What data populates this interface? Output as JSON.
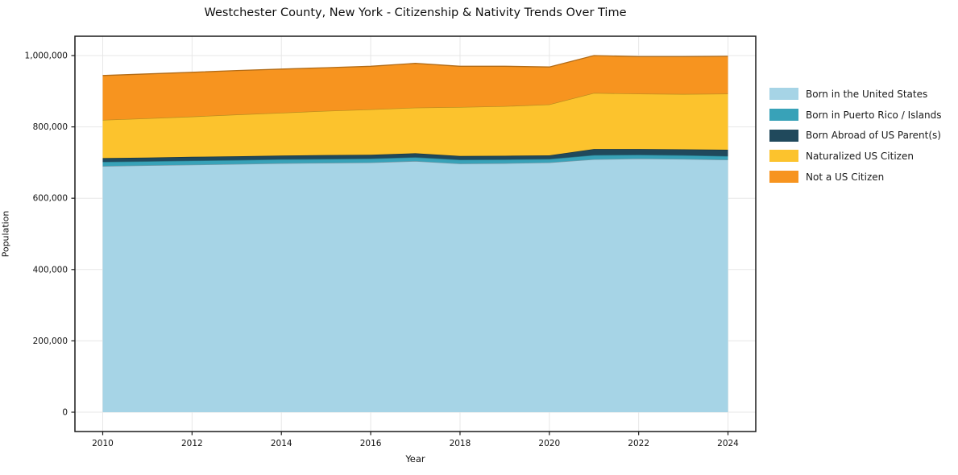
{
  "chart_data": {
    "type": "area",
    "stacked": true,
    "title": "Westchester County, New York - Citizenship & Nativity Trends Over Time",
    "xlabel": "Year",
    "ylabel": "Population",
    "x": [
      2010,
      2011,
      2012,
      2013,
      2014,
      2015,
      2016,
      2017,
      2018,
      2019,
      2020,
      2021,
      2022,
      2023,
      2024
    ],
    "series": [
      {
        "name": "Born in the United States",
        "color": "#a6d4e6",
        "values": [
          690000,
          692000,
          694000,
          696000,
          698000,
          699000,
          700000,
          704000,
          697000,
          698000,
          700000,
          709000,
          711000,
          710000,
          708000
        ]
      },
      {
        "name": "Born in Puerto Rico / Islands",
        "color": "#38a2b8",
        "values": [
          12000,
          11500,
          11500,
          11000,
          11000,
          11000,
          11000,
          11000,
          11000,
          10500,
          10000,
          12000,
          11000,
          10500,
          10000
        ]
      },
      {
        "name": "Born Abroad of US Parent(s)",
        "color": "#20495c",
        "values": [
          10500,
          10500,
          10500,
          10500,
          10500,
          11000,
          11000,
          11000,
          10500,
          10500,
          10000,
          17000,
          16000,
          16500,
          18000
        ]
      },
      {
        "name": "Naturalized US Citizen",
        "color": "#fcc32d",
        "values": [
          107000,
          110000,
          113000,
          117000,
          120000,
          124000,
          127000,
          128000,
          137000,
          139000,
          143000,
          157000,
          155000,
          155000,
          157000
        ]
      },
      {
        "name": "Not a US Citizen",
        "color": "#f7941f",
        "values": [
          124500,
          124500,
          124000,
          123500,
          122500,
          121000,
          121000,
          124000,
          114500,
          112000,
          105000,
          105000,
          104000,
          105000,
          105000
        ]
      }
    ],
    "xticks": [
      2010,
      2012,
      2014,
      2016,
      2018,
      2020,
      2022,
      2024
    ],
    "yticks": [
      0,
      200000,
      400000,
      600000,
      800000,
      1000000
    ],
    "ytick_labels": [
      "0",
      "200,000",
      "400,000",
      "600,000",
      "800,000",
      "1,000,000"
    ],
    "xlim": [
      2010,
      2024
    ],
    "ylim": [
      0,
      1000000
    ],
    "grid": true,
    "legend_position": "right-outside"
  }
}
